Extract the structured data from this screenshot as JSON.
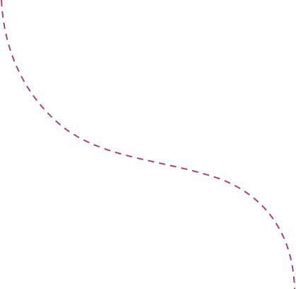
{
  "decoration": {
    "shape": "dashed-s-curve",
    "stroke_color": "#a8466e"
  }
}
